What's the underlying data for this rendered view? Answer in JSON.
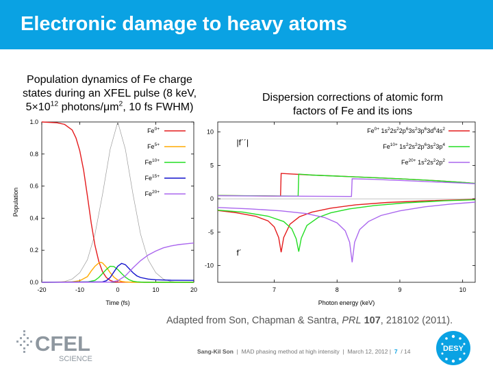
{
  "slide": {
    "title": "Electronic damage to heavy atoms",
    "left_caption": {
      "line1": "Population dynamics of Fe charge",
      "line2": "states during an XFEL pulse (8 keV,",
      "line3_a": "5×10",
      "line3_sup": "12",
      "line3_b": " photons/μm",
      "line3_sup2": "2",
      "line3_c": ", 10 fs FWHM)"
    },
    "right_caption": {
      "line1": "Dispersion corrections of atomic form",
      "line2": "factors of Fe and its ions"
    },
    "citation": {
      "pre": "Adapted from Son, Chapman & Santra, ",
      "journal": "PRL",
      "mid": " ",
      "volume": "107",
      "post": ", 218102 (2011)."
    },
    "footer": {
      "author": "Sang-Kil Son",
      "sep1": "|",
      "talk": "MAD phasing method at high intensity",
      "sep2": "|",
      "date": "March 12, 2012",
      "sep3": "|",
      "page": "7",
      "total": "/ 14"
    },
    "logos": {
      "cfel_text": "CFEL",
      "cfel_sub": "SCIENCE",
      "desy_text": "DESY"
    }
  },
  "chart_data": [
    {
      "type": "line",
      "xlabel": "Time (fs)",
      "ylabel": "Population",
      "xlim": [
        -20,
        20
      ],
      "ylim": [
        0,
        1
      ],
      "x_ticks": [
        "-20",
        "-10",
        "0",
        "10",
        "20"
      ],
      "y_ticks": [
        "0.0",
        "0.2",
        "0.4",
        "0.6",
        "0.8",
        "1.0"
      ],
      "legend_position": "top-right",
      "pulse": {
        "color": "#999999",
        "points": [
          [
            -20,
            0
          ],
          [
            -16,
            0.0
          ],
          [
            -14,
            0.005
          ],
          [
            -12,
            0.02
          ],
          [
            -10,
            0.06
          ],
          [
            -8,
            0.14
          ],
          [
            -6,
            0.3
          ],
          [
            -4,
            0.55
          ],
          [
            -2,
            0.83
          ],
          [
            0,
            1.0
          ],
          [
            2,
            0.83
          ],
          [
            4,
            0.55
          ],
          [
            6,
            0.3
          ],
          [
            8,
            0.14
          ],
          [
            10,
            0.06
          ],
          [
            12,
            0.02
          ],
          [
            14,
            0.005
          ],
          [
            16,
            0.0
          ],
          [
            20,
            0
          ]
        ]
      },
      "series": [
        {
          "name": "Fe",
          "sup": "0+",
          "color": "#e41a1c",
          "points": [
            [
              -20,
              1.0
            ],
            [
              -16,
              0.995
            ],
            [
              -14,
              0.985
            ],
            [
              -12,
              0.95
            ],
            [
              -11,
              0.9
            ],
            [
              -10,
              0.82
            ],
            [
              -9,
              0.7
            ],
            [
              -8,
              0.54
            ],
            [
              -7,
              0.37
            ],
            [
              -6,
              0.23
            ],
            [
              -5,
              0.13
            ],
            [
              -4,
              0.065
            ],
            [
              -3,
              0.03
            ],
            [
              -2,
              0.012
            ],
            [
              -1,
              0.004
            ],
            [
              0,
              0.001
            ],
            [
              20,
              0
            ]
          ]
        },
        {
          "name": "Fe",
          "sup": "5+",
          "color": "#ffaa00",
          "points": [
            [
              -20,
              0
            ],
            [
              -12,
              0.003
            ],
            [
              -10,
              0.01
            ],
            [
              -8,
              0.035
            ],
            [
              -7,
              0.07
            ],
            [
              -6,
              0.1
            ],
            [
              -5,
              0.12
            ],
            [
              -4.5,
              0.125
            ],
            [
              -4,
              0.12
            ],
            [
              -3,
              0.095
            ],
            [
              -2,
              0.06
            ],
            [
              -1,
              0.032
            ],
            [
              0,
              0.014
            ],
            [
              1,
              0.005
            ],
            [
              2,
              0.002
            ],
            [
              4,
              0
            ],
            [
              20,
              0
            ]
          ]
        },
        {
          "name": "Fe",
          "sup": "10+",
          "color": "#22dd22",
          "points": [
            [
              -20,
              0
            ],
            [
              -8,
              0.002
            ],
            [
              -6,
              0.012
            ],
            [
              -5,
              0.03
            ],
            [
              -4,
              0.055
            ],
            [
              -3,
              0.08
            ],
            [
              -2,
              0.1
            ],
            [
              -1,
              0.098
            ],
            [
              0,
              0.08
            ],
            [
              1,
              0.055
            ],
            [
              2,
              0.032
            ],
            [
              3,
              0.016
            ],
            [
              4,
              0.007
            ],
            [
              5,
              0.003
            ],
            [
              7,
              0
            ],
            [
              20,
              0
            ]
          ]
        },
        {
          "name": "Fe",
          "sup": "15+",
          "color": "#1111cc",
          "points": [
            [
              -20,
              0
            ],
            [
              -4,
              0.003
            ],
            [
              -3,
              0.01
            ],
            [
              -2,
              0.03
            ],
            [
              -1,
              0.065
            ],
            [
              0,
              0.1
            ],
            [
              1,
              0.118
            ],
            [
              2,
              0.11
            ],
            [
              3,
              0.085
            ],
            [
              4,
              0.06
            ],
            [
              5,
              0.04
            ],
            [
              6,
              0.03
            ],
            [
              8,
              0.02
            ],
            [
              10,
              0.016
            ],
            [
              14,
              0.013
            ],
            [
              20,
              0.012
            ]
          ]
        },
        {
          "name": "Fe",
          "sup": "20+",
          "color": "#aa66ee",
          "points": [
            [
              -20,
              0
            ],
            [
              -2,
              0.001
            ],
            [
              0,
              0.01
            ],
            [
              2,
              0.04
            ],
            [
              3,
              0.065
            ],
            [
              4,
              0.09
            ],
            [
              6,
              0.135
            ],
            [
              8,
              0.17
            ],
            [
              10,
              0.195
            ],
            [
              12,
              0.215
            ],
            [
              14,
              0.227
            ],
            [
              16,
              0.235
            ],
            [
              18,
              0.24
            ],
            [
              20,
              0.245
            ]
          ]
        }
      ]
    },
    {
      "type": "line",
      "xlabel": "Photon energy (keV)",
      "ylabel": "",
      "xlim": [
        6.1,
        10.2
      ],
      "ylim": [
        -12.5,
        11.5
      ],
      "x_ticks": [
        "7",
        "8",
        "9",
        "10"
      ],
      "y_ticks": [
        "10",
        "5",
        "0",
        "-5",
        "-10"
      ],
      "legend_position": "top-right",
      "annotations": [
        {
          "text": "|f´´|",
          "x": 6.4,
          "y": 8.0
        },
        {
          "text": "f´",
          "x": 6.4,
          "y": -8.5
        }
      ],
      "series": [
        {
          "name": "Fe",
          "sup": "0+",
          "config": "1s22s22p63s23p63d64s2",
          "color": "#e41a1c",
          "edge_keV": 7.11,
          "f2_points": [
            [
              6.1,
              0.5
            ],
            [
              7.1,
              0.4
            ],
            [
              7.11,
              3.8
            ],
            [
              7.3,
              3.7
            ],
            [
              7.6,
              3.55
            ],
            [
              8.0,
              3.4
            ],
            [
              8.5,
              3.2
            ],
            [
              9.0,
              3.0
            ],
            [
              9.5,
              2.75
            ],
            [
              10.0,
              2.45
            ],
            [
              10.2,
              2.3
            ]
          ],
          "f1_points": [
            [
              6.1,
              -1.75
            ],
            [
              6.4,
              -2.1
            ],
            [
              6.7,
              -2.6
            ],
            [
              6.9,
              -3.3
            ],
            [
              7.0,
              -4.2
            ],
            [
              7.07,
              -5.8
            ],
            [
              7.11,
              -8.0
            ],
            [
              7.15,
              -5.8
            ],
            [
              7.25,
              -3.8
            ],
            [
              7.4,
              -2.7
            ],
            [
              7.6,
              -2.0
            ],
            [
              7.9,
              -1.4
            ],
            [
              8.3,
              -0.9
            ],
            [
              8.8,
              -0.55
            ],
            [
              9.4,
              -0.3
            ],
            [
              10.2,
              -0.1
            ]
          ]
        },
        {
          "name": "Fe",
          "sup": "10+",
          "config": "1s22s22p63s23p4",
          "color": "#22dd22",
          "edge_keV": 7.39,
          "f2_points": [
            [
              6.1,
              0.5
            ],
            [
              7.38,
              0.4
            ],
            [
              7.39,
              3.7
            ],
            [
              7.6,
              3.55
            ],
            [
              8.0,
              3.4
            ],
            [
              8.5,
              3.2
            ],
            [
              9.0,
              3.0
            ],
            [
              9.5,
              2.75
            ],
            [
              10.0,
              2.45
            ],
            [
              10.2,
              2.3
            ]
          ],
          "f1_points": [
            [
              6.1,
              -1.7
            ],
            [
              6.5,
              -2.0
            ],
            [
              6.9,
              -2.6
            ],
            [
              7.15,
              -3.4
            ],
            [
              7.28,
              -4.5
            ],
            [
              7.35,
              -6.0
            ],
            [
              7.39,
              -7.9
            ],
            [
              7.43,
              -5.9
            ],
            [
              7.52,
              -4.0
            ],
            [
              7.7,
              -2.8
            ],
            [
              7.9,
              -2.1
            ],
            [
              8.2,
              -1.5
            ],
            [
              8.6,
              -1.0
            ],
            [
              9.1,
              -0.6
            ],
            [
              9.7,
              -0.3
            ],
            [
              10.2,
              -0.15
            ]
          ]
        },
        {
          "name": "Fe",
          "sup": "20+",
          "config": "1s22s22p2",
          "color": "#aa66ee",
          "edge_keV": 8.24,
          "f2_points": [
            [
              6.1,
              0.45
            ],
            [
              8.23,
              0.35
            ],
            [
              8.24,
              3.0
            ],
            [
              8.6,
              2.9
            ],
            [
              9.0,
              2.75
            ],
            [
              9.5,
              2.55
            ],
            [
              10.0,
              2.35
            ],
            [
              10.2,
              2.25
            ]
          ],
          "f1_points": [
            [
              6.1,
              -1.3
            ],
            [
              6.6,
              -1.5
            ],
            [
              7.1,
              -1.8
            ],
            [
              7.5,
              -2.2
            ],
            [
              7.8,
              -2.8
            ],
            [
              8.0,
              -3.6
            ],
            [
              8.13,
              -4.8
            ],
            [
              8.2,
              -6.5
            ],
            [
              8.24,
              -9.5
            ],
            [
              8.28,
              -6.5
            ],
            [
              8.36,
              -4.6
            ],
            [
              8.5,
              -3.4
            ],
            [
              8.7,
              -2.5
            ],
            [
              9.0,
              -1.8
            ],
            [
              9.4,
              -1.2
            ],
            [
              9.8,
              -0.8
            ],
            [
              10.2,
              -0.5
            ]
          ]
        }
      ]
    }
  ]
}
